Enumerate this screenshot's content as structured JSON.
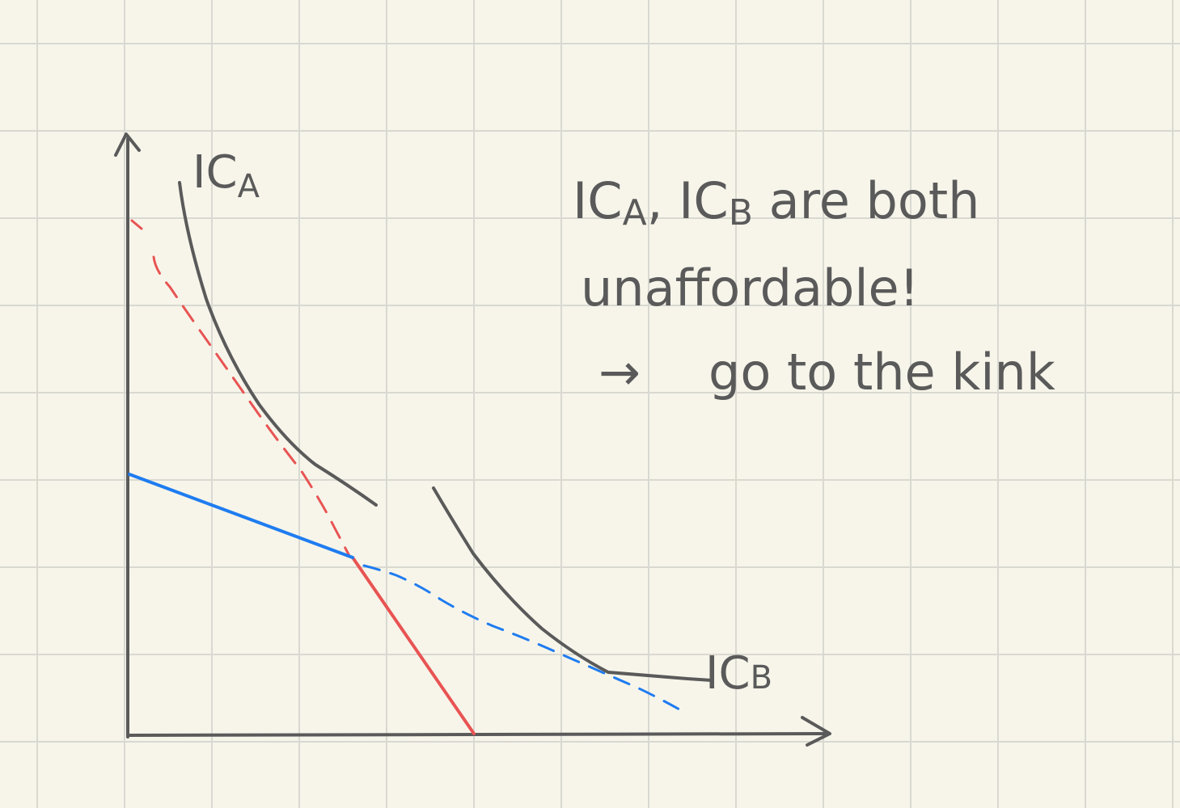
{
  "labels": {
    "ic_a": "IC",
    "ic_a_sub": "A",
    "ic_b": "IC",
    "ic_b_sub": "B"
  },
  "note": {
    "line1": "IC",
    "line1_sub_a": "A",
    "line1_mid": ", IC",
    "line1_sub_b": "B",
    "line1_end": " are both",
    "line2": "unaffordable!",
    "line3_arrow": "→",
    "line3": "go to the kink"
  },
  "colors": {
    "background": "#f7f5ea",
    "grid": "#d9d9d2",
    "ink": "#5a5a5a",
    "red": "#e85453",
    "blue": "#1f7cf0"
  }
}
